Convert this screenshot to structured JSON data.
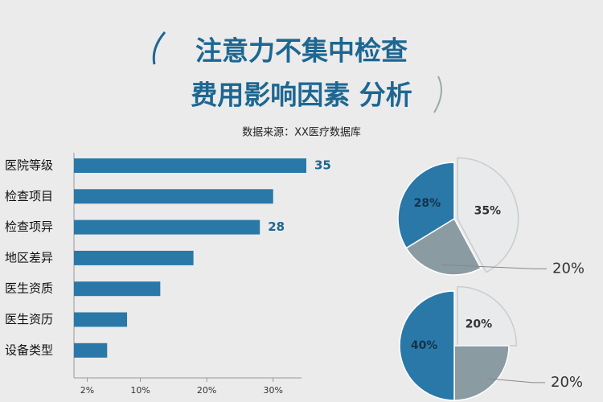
{
  "chart_data": [
    {
      "type": "bar",
      "title": [
        "注意力不集中检查",
        "费用影响因素 分析"
      ],
      "subtitle": "数据来源：XX医疗数据库",
      "categories": [
        "医院等级",
        "检查项目",
        "检查项异",
        "地区差异",
        "医生资质",
        "医生资历",
        "设备类型"
      ],
      "values": [
        35,
        30,
        28,
        18,
        13,
        8,
        5
      ],
      "value_labels": [
        "35",
        null,
        "28",
        null,
        null,
        null,
        null
      ],
      "color": "#2a78a8",
      "orientation": "horizontal",
      "xlim": [
        0,
        35
      ],
      "xticks": [
        {
          "value": 2,
          "label": "2%"
        },
        {
          "value": 10,
          "label": "10%"
        },
        {
          "value": 20,
          "label": "20%"
        },
        {
          "value": 30,
          "label": "30%"
        }
      ]
    },
    {
      "type": "pie",
      "values": [
        35,
        20,
        28
      ],
      "value_labels": [
        "35%",
        "20%",
        "28%"
      ],
      "colors": [
        "#e8eaec",
        "#8a9ba2",
        "#2a78a8"
      ],
      "outside_label": 1
    },
    {
      "type": "pie",
      "values": [
        20,
        20,
        40
      ],
      "value_labels": [
        "20%",
        "20%",
        "40%"
      ],
      "colors": [
        "#e8eaec",
        "#8a9ba2",
        "#2a78a8"
      ],
      "outside_label": 1
    }
  ]
}
